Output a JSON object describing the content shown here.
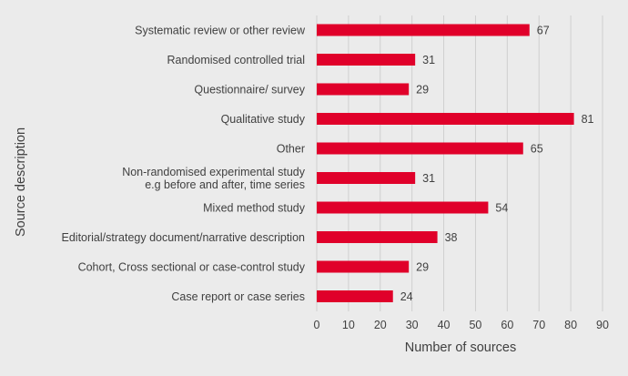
{
  "chart_data": {
    "type": "bar",
    "orientation": "horizontal",
    "categories": [
      "Systematic review or other review",
      "Randomised controlled trial",
      "Questionnaire/ survey",
      "Qualitative study",
      "Other",
      "Non-randomised experimental study e.g before and after, time series",
      "Mixed method study",
      "Editorial/strategy document/narrative description",
      "Cohort, Cross sectional or case-control study",
      "Case report or case series"
    ],
    "category_lines": [
      [
        "Systematic review or other review"
      ],
      [
        "Randomised controlled trial"
      ],
      [
        "Questionnaire/ survey"
      ],
      [
        "Qualitative study"
      ],
      [
        "Other"
      ],
      [
        "Non-randomised experimental study",
        "e.g before and after, time series"
      ],
      [
        "Mixed method study"
      ],
      [
        "Editorial/strategy document/narrative description"
      ],
      [
        "Cohort, Cross sectional or case-control study"
      ],
      [
        "Case report or case series"
      ]
    ],
    "values": [
      67,
      31,
      29,
      81,
      65,
      31,
      54,
      38,
      29,
      24
    ],
    "data_labels": [
      "67",
      "31",
      "29",
      "81",
      "65",
      "31",
      "54",
      "38",
      "29",
      "24"
    ],
    "xlabel": "Number of sources",
    "ylabel": "Source description",
    "xlim": [
      0,
      90
    ],
    "xticks": [
      0,
      10,
      20,
      30,
      40,
      50,
      60,
      70,
      80,
      90
    ],
    "xtick_labels": [
      "0",
      "10",
      "20",
      "30",
      "40",
      "50",
      "60",
      "70",
      "80",
      "90"
    ],
    "grid": "vertical",
    "legend": "none",
    "colors": {
      "bar": "#e0002a",
      "background": "#ebebeb",
      "gridline": "#cfcfcf",
      "text": "#404040"
    }
  }
}
